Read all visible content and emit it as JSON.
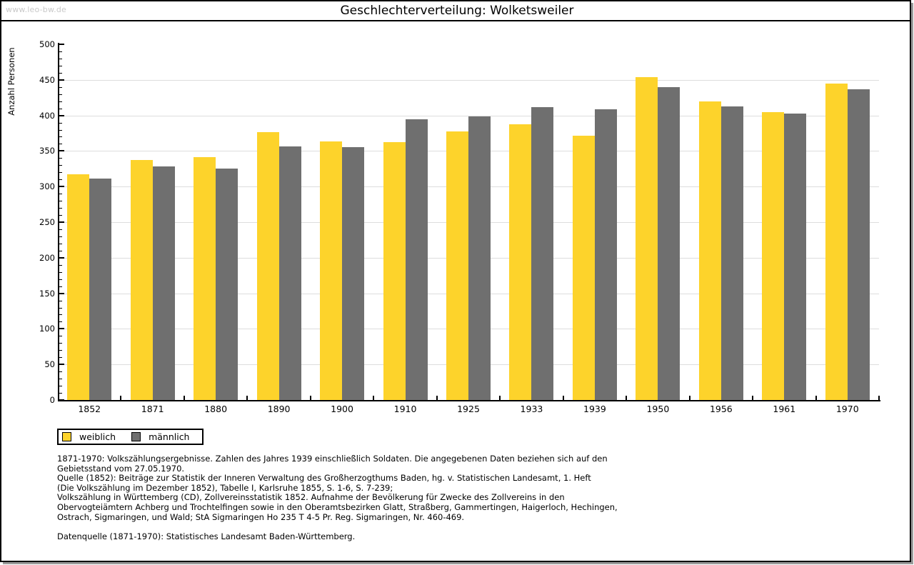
{
  "page": {
    "site_label": "www.leo-bw.de",
    "title": "Geschlechterverteilung: Wolketsweiler"
  },
  "chart_data": {
    "type": "bar",
    "title": "Geschlechterverteilung: Wolketsweiler",
    "xlabel": "",
    "ylabel": "Anzahl Personen",
    "ylim": [
      0,
      500
    ],
    "ytick_step": 50,
    "yminor_step": 10,
    "grid": true,
    "legend_position": "bottom-left",
    "categories": [
      "1852",
      "1871",
      "1880",
      "1890",
      "1900",
      "1910",
      "1925",
      "1933",
      "1939",
      "1950",
      "1956",
      "1961",
      "1970"
    ],
    "series": [
      {
        "name": "weiblich",
        "color": "#FDD32B",
        "values": [
          317,
          337,
          341,
          377,
          363,
          362,
          378,
          388,
          371,
          454,
          420,
          405,
          445
        ]
      },
      {
        "name": "männlich",
        "color": "#6F6F6F",
        "values": [
          311,
          328,
          325,
          356,
          355,
          395,
          399,
          412,
          409,
          440,
          413,
          403,
          437
        ]
      }
    ]
  },
  "legend": {
    "items": [
      {
        "label": "weiblich",
        "color": "#FDD32B"
      },
      {
        "label": "männlich",
        "color": "#6F6F6F"
      }
    ]
  },
  "footer": {
    "lines": [
      "1871-1970: Volkszählungsergebnisse. Zahlen des Jahres 1939 einschließlich Soldaten. Die angegebenen Daten beziehen sich auf den",
      "Gebietsstand vom 27.05.1970.",
      "Quelle (1852): Beiträge zur Statistik der Inneren Verwaltung des Großherzogthums Baden, hg. v. Statistischen Landesamt, 1. Heft",
      "(Die Volkszählung im Dezember 1852), Tabelle I, Karlsruhe 1855, S. 1-6, S. 7-239;",
      "Volkszählung in Württemberg (CD), Zollvereinsstatistik 1852. Aufnahme der Bevölkerung für Zwecke des Zollvereins in den",
      "Obervogteiämtern Achberg und Trochtelfingen sowie in den Oberamtsbezirken Glatt, Straßberg, Gammertingen, Haigerloch, Hechingen,",
      "Ostrach, Sigmaringen, und Wald; StA Sigmaringen Ho 235 T 4-5 Pr. Reg. Sigmaringen, Nr. 460-469."
    ],
    "datasource": "Datenquelle (1871-1970): Statistisches Landesamt Baden-Württemberg."
  }
}
